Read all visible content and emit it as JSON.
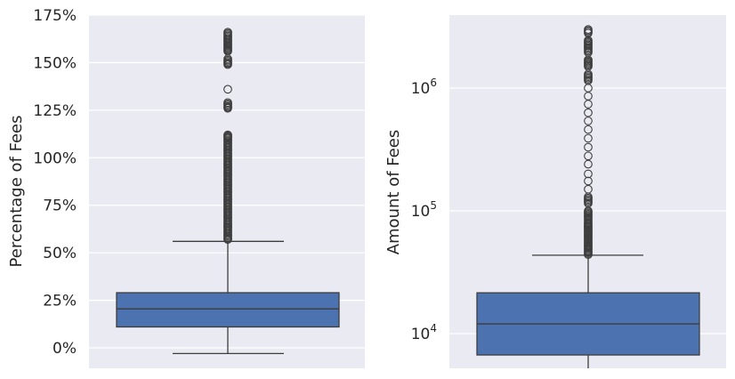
{
  "chart_data": [
    {
      "type": "box",
      "ylabel": "Percentage of Fees",
      "yscale": "linear",
      "ylim": [
        -10,
        175
      ],
      "grid": true,
      "box": {
        "whisker_low": -3,
        "q1": 11,
        "median": 20.5,
        "q3": 29,
        "whisker_high": 56,
        "fill": "#4C72B0",
        "outliers": [
          57,
          58,
          60,
          62,
          64,
          66,
          68,
          70,
          72,
          74,
          76,
          78,
          80,
          82,
          84,
          86,
          88,
          90,
          92,
          94,
          96,
          98,
          100,
          102,
          104,
          106,
          108,
          110,
          111,
          112,
          126,
          127,
          129,
          136,
          149,
          150,
          152,
          156,
          157,
          160,
          162,
          164,
          166
        ]
      },
      "yticks": [
        {
          "value": 0,
          "label": "0%"
        },
        {
          "value": 25,
          "label": "25%"
        },
        {
          "value": 50,
          "label": "50%"
        },
        {
          "value": 75,
          "label": "75%"
        },
        {
          "value": 100,
          "label": "100%"
        },
        {
          "value": 125,
          "label": "125%"
        },
        {
          "value": 150,
          "label": "150%"
        },
        {
          "value": 175,
          "label": "175%"
        }
      ]
    },
    {
      "type": "box",
      "ylabel": "Amount of Fees",
      "yscale": "log",
      "ylim": [
        5000,
        4000000
      ],
      "grid": true,
      "box": {
        "whisker_low": 5000,
        "q1": 6700,
        "median": 12000,
        "q3": 21500,
        "whisker_high": 43500,
        "fill": "#4C72B0",
        "outliers": [
          44000,
          46000,
          49000,
          53000,
          58000,
          63000,
          70000,
          78000,
          88000,
          100000,
          115000,
          130000,
          150000,
          175000,
          200000,
          240000,
          280000,
          330000,
          390000,
          460000,
          540000,
          630000,
          740000,
          860000,
          1000000,
          1150000,
          1300000,
          1500000,
          1700000,
          1950000,
          2200000,
          2450000,
          2800000,
          3000000
        ]
      },
      "yticks": [
        {
          "value": 10000,
          "base": "10",
          "exp": "4"
        },
        {
          "value": 100000,
          "base": "10",
          "exp": "5"
        },
        {
          "value": 1000000,
          "base": "10",
          "exp": "6"
        }
      ]
    }
  ]
}
